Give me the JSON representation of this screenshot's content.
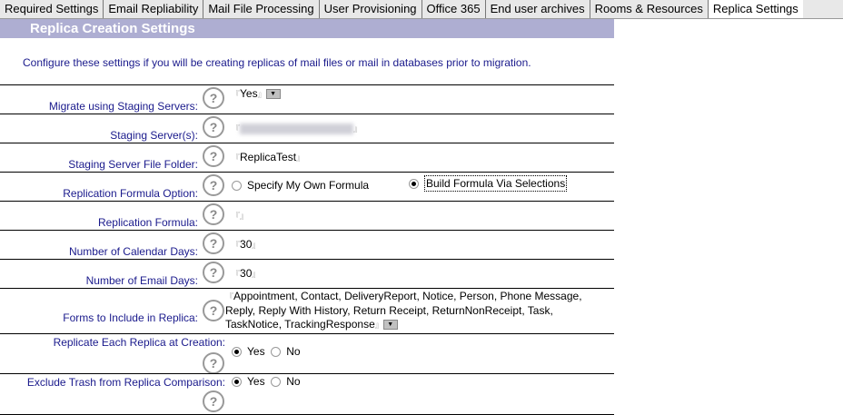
{
  "tabs": [
    "Required Settings",
    "Email Repliability",
    "Mail File Processing",
    "User Provisioning",
    "Office 365",
    "End user archives",
    "Rooms & Resources",
    "Replica Settings"
  ],
  "active_tab": "Replica Settings",
  "section_title": "Replica Creation Settings",
  "description": "Configure these settings if you will be creating replicas of mail files or mail in databases prior to migration.",
  "help_symbol": "?",
  "fields": {
    "staging": {
      "label": "Migrate using Staging Servers:",
      "value": "Yes"
    },
    "servers": {
      "label": "Staging Server(s):",
      "value": ""
    },
    "folder": {
      "label": "Staging Server File Folder:",
      "value": "ReplicaTest"
    },
    "formula_option": {
      "label": "Replication Formula Option:",
      "opt1": "Specify My Own Formula",
      "opt2": "Build Formula Via Selections",
      "selected": "Build Formula Via Selections"
    },
    "formula": {
      "label": "Replication Formula:",
      "value": ""
    },
    "cal_days": {
      "label": "Number of Calendar Days:",
      "value": "30"
    },
    "email_days": {
      "label": "Number of Email Days:",
      "value": "30"
    },
    "forms": {
      "label": "Forms to Include in Replica:",
      "value": "Appointment, Contact, DeliveryReport, Notice, Person, Phone Message, Reply, Reply With History, Return Receipt, ReturnNonReceipt, Task, TaskNotice, TrackingResponse"
    },
    "replicate": {
      "label": "Replicate Each Replica at Creation:",
      "yes": "Yes",
      "no": "No",
      "selected": "Yes"
    },
    "trash": {
      "label": "Exclude Trash from Replica Comparison:",
      "yes": "Yes",
      "no": "No",
      "selected": "Yes"
    }
  }
}
